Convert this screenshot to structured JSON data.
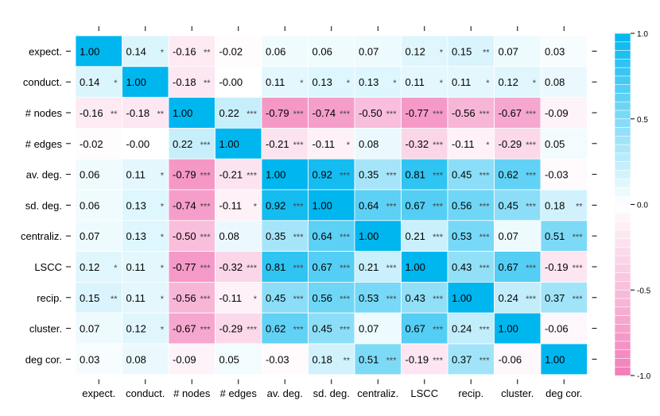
{
  "chart_data": {
    "type": "heatmap",
    "title": "",
    "variables": [
      "expect.",
      "conduct.",
      "# nodes",
      "# edges",
      "av. deg.",
      "sd. deg.",
      "centraliz.",
      "LSCC",
      "recip.",
      "cluster.",
      "deg cor."
    ],
    "values": [
      [
        1.0,
        0.14,
        -0.16,
        -0.02,
        0.06,
        0.06,
        0.07,
        0.12,
        0.15,
        0.07,
        0.03
      ],
      [
        0.14,
        1.0,
        -0.18,
        -0.0,
        0.11,
        0.13,
        0.13,
        0.11,
        0.11,
        0.12,
        0.08
      ],
      [
        -0.16,
        -0.18,
        1.0,
        0.22,
        -0.79,
        -0.74,
        -0.5,
        -0.77,
        -0.56,
        -0.67,
        -0.09
      ],
      [
        -0.02,
        -0.0,
        0.22,
        1.0,
        -0.21,
        -0.11,
        0.08,
        -0.32,
        -0.11,
        -0.29,
        0.05
      ],
      [
        0.06,
        0.11,
        -0.79,
        -0.21,
        1.0,
        0.92,
        0.35,
        0.81,
        0.45,
        0.62,
        -0.03
      ],
      [
        0.06,
        0.13,
        -0.74,
        -0.11,
        0.92,
        1.0,
        0.64,
        0.67,
        0.56,
        0.45,
        0.18
      ],
      [
        0.07,
        0.13,
        -0.5,
        0.08,
        0.35,
        0.64,
        1.0,
        0.21,
        0.53,
        0.07,
        0.51
      ],
      [
        0.12,
        0.11,
        -0.77,
        -0.32,
        0.81,
        0.67,
        0.21,
        1.0,
        0.43,
        0.67,
        -0.19
      ],
      [
        0.15,
        0.11,
        -0.56,
        -0.11,
        0.45,
        0.56,
        0.53,
        0.43,
        1.0,
        0.24,
        0.37
      ],
      [
        0.07,
        0.12,
        -0.67,
        -0.29,
        0.62,
        0.45,
        0.07,
        0.67,
        0.24,
        1.0,
        -0.06
      ],
      [
        0.03,
        0.08,
        -0.09,
        0.05,
        -0.03,
        0.18,
        0.51,
        -0.19,
        0.37,
        -0.06,
        1.0
      ]
    ],
    "labels": [
      [
        "1.00",
        "0.14",
        "-0.16",
        "-0.02",
        "0.06",
        "0.06",
        "0.07",
        "0.12",
        "0.15",
        "0.07",
        "0.03"
      ],
      [
        "0.14",
        "1.00",
        "-0.18",
        "-0.00",
        "0.11",
        "0.13",
        "0.13",
        "0.11",
        "0.11",
        "0.12",
        "0.08"
      ],
      [
        "-0.16",
        "-0.18",
        "1.00",
        "0.22",
        "-0.79",
        "-0.74",
        "-0.50",
        "-0.77",
        "-0.56",
        "-0.67",
        "-0.09"
      ],
      [
        "-0.02",
        "-0.00",
        "0.22",
        "1.00",
        "-0.21",
        "-0.11",
        "0.08",
        "-0.32",
        "-0.11",
        "-0.29",
        "0.05"
      ],
      [
        "0.06",
        "0.11",
        "-0.79",
        "-0.21",
        "1.00",
        "0.92",
        "0.35",
        "0.81",
        "0.45",
        "0.62",
        "-0.03"
      ],
      [
        "0.06",
        "0.13",
        "-0.74",
        "-0.11",
        "0.92",
        "1.00",
        "0.64",
        "0.67",
        "0.56",
        "0.45",
        "0.18"
      ],
      [
        "0.07",
        "0.13",
        "-0.50",
        "0.08",
        "0.35",
        "0.64",
        "1.00",
        "0.21",
        "0.53",
        "0.07",
        "0.51"
      ],
      [
        "0.12",
        "0.11",
        "-0.77",
        "-0.32",
        "0.81",
        "0.67",
        "0.21",
        "1.00",
        "0.43",
        "0.67",
        "-0.19"
      ],
      [
        "0.15",
        "0.11",
        "-0.56",
        "-0.11",
        "0.45",
        "0.56",
        "0.53",
        "0.43",
        "1.00",
        "0.24",
        "0.37"
      ],
      [
        "0.07",
        "0.12",
        "-0.67",
        "-0.29",
        "0.62",
        "0.45",
        "0.07",
        "0.67",
        "0.24",
        "1.00",
        "-0.06"
      ],
      [
        "0.03",
        "0.08",
        "-0.09",
        "0.05",
        "-0.03",
        "0.18",
        "0.51",
        "-0.19",
        "0.37",
        "-0.06",
        "1.00"
      ]
    ],
    "significance": [
      [
        "",
        "*",
        "**",
        "",
        "",
        "",
        "",
        "*",
        "**",
        "",
        ""
      ],
      [
        "*",
        "",
        "**",
        "",
        "*",
        "*",
        "*",
        "*",
        "*",
        "*",
        ""
      ],
      [
        "**",
        "**",
        "",
        "***",
        "***",
        "***",
        "***",
        "***",
        "***",
        "***",
        ""
      ],
      [
        "",
        "",
        "***",
        "",
        "***",
        "*",
        "",
        "***",
        "*",
        "***",
        ""
      ],
      [
        "",
        "*",
        "***",
        "***",
        "",
        "***",
        "***",
        "***",
        "***",
        "***",
        ""
      ],
      [
        "",
        "*",
        "***",
        "*",
        "***",
        "",
        "***",
        "***",
        "***",
        "***",
        "**"
      ],
      [
        "",
        "*",
        "***",
        "",
        "***",
        "***",
        "",
        "***",
        "***",
        "",
        "***"
      ],
      [
        "*",
        "*",
        "***",
        "***",
        "***",
        "***",
        "***",
        "",
        "***",
        "***",
        "***"
      ],
      [
        "**",
        "*",
        "***",
        "*",
        "***",
        "***",
        "***",
        "***",
        "",
        "***",
        "***"
      ],
      [
        "",
        "*",
        "***",
        "***",
        "***",
        "***",
        "",
        "***",
        "***",
        "",
        ""
      ],
      [
        "",
        "",
        "",
        "",
        "",
        "**",
        "***",
        "***",
        "***",
        "",
        ""
      ]
    ],
    "colorbar": {
      "range": [
        -1.0,
        1.0
      ],
      "ticks": [
        "1.0",
        "0.5",
        "0.0",
        "-0.5",
        "-1.0"
      ],
      "tick_values": [
        1.0,
        0.5,
        0.0,
        -0.5,
        -1.0
      ]
    },
    "colors": {
      "positive": "#00b6ef",
      "negative": "#f27cb7",
      "neutral": "#ffffff",
      "grid": "#ffffff"
    }
  }
}
